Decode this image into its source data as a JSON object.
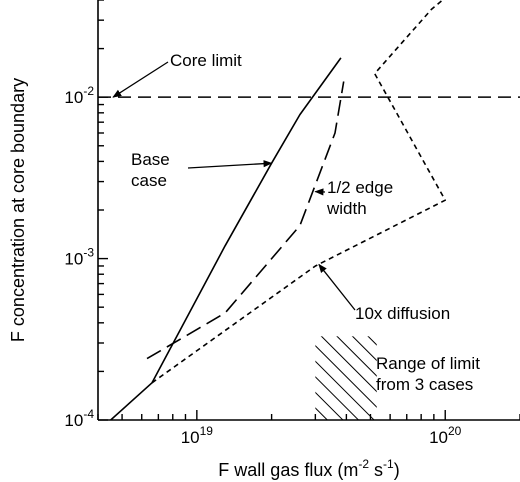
{
  "chart_data": {
    "type": "line",
    "title": "",
    "xlabel": {
      "main": "F wall gas flux (m",
      "sup1": "-2",
      "mid": " s",
      "sup2": "-1",
      "end": ")"
    },
    "ylabel": "F concentration at core boundary",
    "x_scale": "log",
    "y_scale": "log",
    "xlim": [
      4e+18,
      2e+20
    ],
    "ylim": [
      0.0001,
      0.04
    ],
    "x_ticks": [
      {
        "value": 1e+19,
        "base": "10",
        "exp": "19"
      },
      {
        "value": 1e+20,
        "base": "10",
        "exp": "20"
      }
    ],
    "y_ticks": [
      {
        "value": 0.0001,
        "base": "10",
        "exp": "-4"
      },
      {
        "value": 0.001,
        "base": "10",
        "exp": "-3"
      },
      {
        "value": 0.01,
        "base": "10",
        "exp": "-2"
      }
    ],
    "grid": false,
    "legend": "none",
    "series": [
      {
        "style": "solid",
        "x": [
          4.5e+18,
          6.6e+18,
          1.3e+19,
          2e+19,
          2.6e+19,
          3.8e+19
        ],
        "y": [
          0.0001,
          0.00017,
          0.0012,
          0.0039,
          0.0078,
          0.0175
        ]
      },
      {
        "style": "long-dash",
        "x": [
          6.3e+18,
          1.3e+19,
          2.6e+19,
          3.6e+19,
          3.9e+19
        ],
        "y": [
          0.00024,
          0.00046,
          0.0016,
          0.006,
          0.0125
        ]
      },
      {
        "style": "short-dash",
        "x": [
          6.6e+18,
          3e+19,
          1e+20,
          5.2e+19,
          8.8e+19,
          1.25e+20
        ],
        "y": [
          0.00017,
          0.0009,
          0.0023,
          0.014,
          0.035,
          0.055
        ]
      }
    ],
    "reference_lines": [
      {
        "style": "dash",
        "y": 0.01
      }
    ],
    "annotations": [
      {
        "lines": [
          "Core limit"
        ],
        "arrow_to": [
          4.6e+18,
          0.01
        ]
      },
      {
        "lines": [
          "Base",
          "case"
        ],
        "arrow_to": [
          2e+19,
          0.0039
        ]
      },
      {
        "lines": [
          "1/2 edge",
          "width"
        ],
        "arrow_to": [
          3e+19,
          0.0026
        ]
      },
      {
        "lines": [
          "10x diffusion"
        ],
        "arrow_to": [
          3.1e+19,
          0.00092
        ]
      },
      {
        "lines": [
          "Range of limit",
          "from 3 cases"
        ]
      }
    ],
    "hatched_region": {
      "x": [
        3e+19,
        5.3e+19
      ],
      "y": [
        0.0001,
        0.00033
      ]
    }
  }
}
